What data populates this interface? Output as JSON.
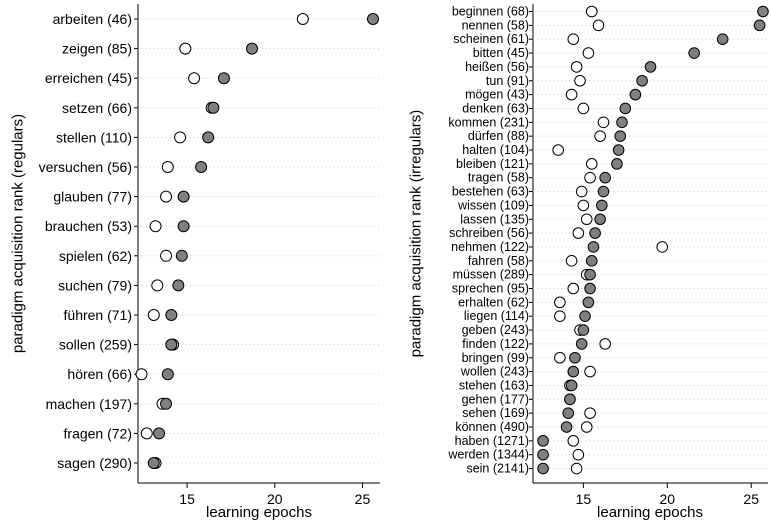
{
  "chart_data": [
    {
      "type": "scatter",
      "xlabel": "learning epochs",
      "ylabel": "paradigm acquisition rank (regulars)",
      "xlim": [
        12.2,
        26
      ],
      "xticks": [
        15,
        20,
        25
      ],
      "grid": "horizontal dotted",
      "series": [
        {
          "marker": "open circle",
          "color": "#ffffff"
        },
        {
          "marker": "filled circle",
          "color": "#808080"
        }
      ],
      "categories": [
        "arbeiten (46)",
        "zeigen (85)",
        "erreichen (45)",
        "setzen (66)",
        "stellen (110)",
        "versuchen (56)",
        "glauben (77)",
        "brauchen (53)",
        "spielen (62)",
        "suchen (79)",
        "führen (71)",
        "sollen (259)",
        "hören (66)",
        "machen (197)",
        "fragen (72)",
        "sagen (290)"
      ],
      "open_values": [
        21.6,
        14.9,
        15.4,
        16.4,
        14.6,
        13.9,
        13.8,
        13.2,
        13.8,
        13.3,
        13.1,
        14.2,
        12.4,
        13.6,
        12.7,
        13.2
      ],
      "filled_values": [
        25.6,
        18.7,
        17.1,
        16.5,
        16.2,
        15.8,
        14.8,
        14.8,
        14.7,
        14.5,
        14.1,
        14.1,
        13.9,
        13.8,
        13.4,
        13.1
      ]
    },
    {
      "type": "scatter",
      "xlabel": "learning epochs",
      "ylabel": "paradigm acquisition rank (irregulars)",
      "xlim": [
        12.0,
        26
      ],
      "xticks": [
        15,
        20,
        25
      ],
      "grid": "horizontal dotted",
      "series": [
        {
          "marker": "open circle",
          "color": "#ffffff"
        },
        {
          "marker": "filled circle",
          "color": "#808080"
        }
      ],
      "categories": [
        "beginnen (68)",
        "nennen (58)",
        "scheinen (61)",
        "bitten (45)",
        "heißen (56)",
        "tun (91)",
        "mögen (43)",
        "denken (63)",
        "kommen (231)",
        "dürfen (88)",
        "halten (104)",
        "bleiben (121)",
        "tragen (58)",
        "bestehen (63)",
        "wissen (109)",
        "lassen (135)",
        "schreiben (56)",
        "nehmen (122)",
        "fahren (58)",
        "müssen (289)",
        "sprechen (95)",
        "erhalten (62)",
        "liegen (114)",
        "geben (243)",
        "finden (122)",
        "bringen (99)",
        "wollen (243)",
        "stehen (163)",
        "gehen (177)",
        "sehen (169)",
        "können (490)",
        "haben (1271)",
        "werden (1344)",
        "sein (2141)"
      ],
      "open_values": [
        15.5,
        15.9,
        14.4,
        15.3,
        14.6,
        14.8,
        14.3,
        15.0,
        16.2,
        16.0,
        13.5,
        15.5,
        15.4,
        14.9,
        15.0,
        15.2,
        14.7,
        19.7,
        14.3,
        15.2,
        14.4,
        13.6,
        13.6,
        14.8,
        16.3,
        13.6,
        15.4,
        14.2,
        14.2,
        15.4,
        15.2,
        14.4,
        14.7,
        14.6
      ],
      "filled_values": [
        25.7,
        25.5,
        23.3,
        21.6,
        19.0,
        18.5,
        18.1,
        17.5,
        17.3,
        17.2,
        17.1,
        17.0,
        16.3,
        16.2,
        16.1,
        16.0,
        15.7,
        15.6,
        15.5,
        15.4,
        15.4,
        15.3,
        15.1,
        15.0,
        14.9,
        14.5,
        14.4,
        14.3,
        14.2,
        14.1,
        14.0,
        12.6,
        12.6,
        12.6
      ]
    }
  ]
}
